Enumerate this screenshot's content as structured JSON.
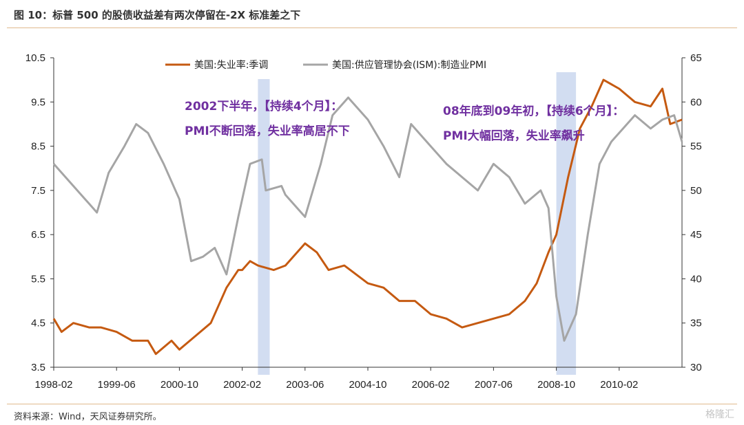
{
  "figure": {
    "title": "图 10：标普 500 的股债收益差有两次停留在-2X 标准差之下",
    "source": "资料来源：Wind，天风证券研究所。",
    "watermark": "格隆汇"
  },
  "chart_data": {
    "type": "line",
    "x_tick_labels": [
      "1998-02",
      "1999-06",
      "2000-10",
      "2002-02",
      "2003-06",
      "2004-10",
      "2006-02",
      "2007-06",
      "2008-10",
      "2010-02"
    ],
    "x_range": [
      "1998-02",
      "2011-06"
    ],
    "y_left": {
      "range": [
        3.5,
        10.5
      ],
      "ticks": [
        "10.5",
        "9.5",
        "8.5",
        "7.5",
        "6.5",
        "5.5",
        "4.5",
        "3.5"
      ]
    },
    "y_right": {
      "range": [
        30,
        65
      ],
      "ticks": [
        "65",
        "60",
        "55",
        "50",
        "45",
        "40",
        "35",
        "30"
      ]
    },
    "legend_position": "top",
    "grid": false,
    "series": [
      {
        "name": "美国:失业率:季调",
        "axis": "left",
        "color": "#c55a11",
        "points": [
          [
            "1998-02",
            4.6
          ],
          [
            "1998-04",
            4.3
          ],
          [
            "1998-07",
            4.5
          ],
          [
            "1998-11",
            4.4
          ],
          [
            "1999-02",
            4.4
          ],
          [
            "1999-06",
            4.3
          ],
          [
            "1999-10",
            4.1
          ],
          [
            "2000-02",
            4.1
          ],
          [
            "2000-04",
            3.8
          ],
          [
            "2000-08",
            4.1
          ],
          [
            "2000-10",
            3.9
          ],
          [
            "2001-02",
            4.2
          ],
          [
            "2001-06",
            4.5
          ],
          [
            "2001-10",
            5.3
          ],
          [
            "2002-01",
            5.7
          ],
          [
            "2002-02",
            5.7
          ],
          [
            "2002-04",
            5.9
          ],
          [
            "2002-06",
            5.8
          ],
          [
            "2002-10",
            5.7
          ],
          [
            "2003-01",
            5.8
          ],
          [
            "2003-03",
            6.0
          ],
          [
            "2003-06",
            6.3
          ],
          [
            "2003-09",
            6.1
          ],
          [
            "2003-12",
            5.7
          ],
          [
            "2004-04",
            5.8
          ],
          [
            "2004-10",
            5.4
          ],
          [
            "2005-02",
            5.3
          ],
          [
            "2005-06",
            5.0
          ],
          [
            "2005-10",
            5.0
          ],
          [
            "2006-02",
            4.7
          ],
          [
            "2006-06",
            4.6
          ],
          [
            "2006-10",
            4.4
          ],
          [
            "2007-02",
            4.5
          ],
          [
            "2007-06",
            4.6
          ],
          [
            "2007-10",
            4.7
          ],
          [
            "2008-02",
            5.0
          ],
          [
            "2008-05",
            5.4
          ],
          [
            "2008-08",
            6.1
          ],
          [
            "2008-10",
            6.5
          ],
          [
            "2009-01",
            7.8
          ],
          [
            "2009-04",
            8.9
          ],
          [
            "2009-07",
            9.4
          ],
          [
            "2009-10",
            10.0
          ],
          [
            "2010-02",
            9.8
          ],
          [
            "2010-06",
            9.5
          ],
          [
            "2010-10",
            9.4
          ],
          [
            "2011-01",
            9.8
          ],
          [
            "2011-03",
            9.0
          ],
          [
            "2011-06",
            9.1
          ]
        ]
      },
      {
        "name": "美国:供应管理协会(ISM):制造业PMI",
        "axis": "right",
        "color": "#a5a5a5",
        "points": [
          [
            "1998-02",
            53.0
          ],
          [
            "1998-06",
            51.0
          ],
          [
            "1998-10",
            49.0
          ],
          [
            "1999-01",
            47.5
          ],
          [
            "1999-04",
            52.0
          ],
          [
            "1999-08",
            55.0
          ],
          [
            "1999-11",
            57.5
          ],
          [
            "2000-02",
            56.5
          ],
          [
            "2000-06",
            53.0
          ],
          [
            "2000-10",
            49.0
          ],
          [
            "2001-01",
            42.0
          ],
          [
            "2001-04",
            42.5
          ],
          [
            "2001-07",
            43.5
          ],
          [
            "2001-10",
            40.5
          ],
          [
            "2002-01",
            47.0
          ],
          [
            "2002-04",
            53.0
          ],
          [
            "2002-07",
            53.5
          ],
          [
            "2002-08",
            50.0
          ],
          [
            "2002-12",
            50.5
          ],
          [
            "2003-01",
            49.5
          ],
          [
            "2003-06",
            47.0
          ],
          [
            "2003-10",
            53.0
          ],
          [
            "2004-01",
            58.5
          ],
          [
            "2004-05",
            60.5
          ],
          [
            "2004-10",
            58.0
          ],
          [
            "2005-02",
            55.0
          ],
          [
            "2005-06",
            51.5
          ],
          [
            "2005-09",
            57.5
          ],
          [
            "2006-02",
            55.0
          ],
          [
            "2006-06",
            53.0
          ],
          [
            "2006-10",
            51.5
          ],
          [
            "2007-02",
            50.0
          ],
          [
            "2007-06",
            53.0
          ],
          [
            "2007-10",
            51.5
          ],
          [
            "2008-02",
            48.5
          ],
          [
            "2008-06",
            50.0
          ],
          [
            "2008-08",
            48.0
          ],
          [
            "2008-10",
            38.0
          ],
          [
            "2008-12",
            33.0
          ],
          [
            "2009-03",
            36.0
          ],
          [
            "2009-06",
            45.0
          ],
          [
            "2009-09",
            53.0
          ],
          [
            "2009-12",
            55.5
          ],
          [
            "2010-02",
            56.5
          ],
          [
            "2010-06",
            58.5
          ],
          [
            "2010-10",
            57.0
          ],
          [
            "2011-01",
            58.0
          ],
          [
            "2011-04",
            58.5
          ],
          [
            "2011-06",
            55.5
          ]
        ]
      }
    ],
    "shaded_periods": [
      [
        "2002-06",
        "2002-09"
      ],
      [
        "2008-10",
        "2009-03"
      ]
    ],
    "annotations": [
      {
        "lines": [
          "2002下半年，【持续4个月】：",
          "PMI不断回落，失业率高居不下"
        ]
      },
      {
        "lines": [
          "08年底到09年初，【持续6个月】：",
          "PMI大幅回落，失业率飙升"
        ]
      }
    ]
  }
}
